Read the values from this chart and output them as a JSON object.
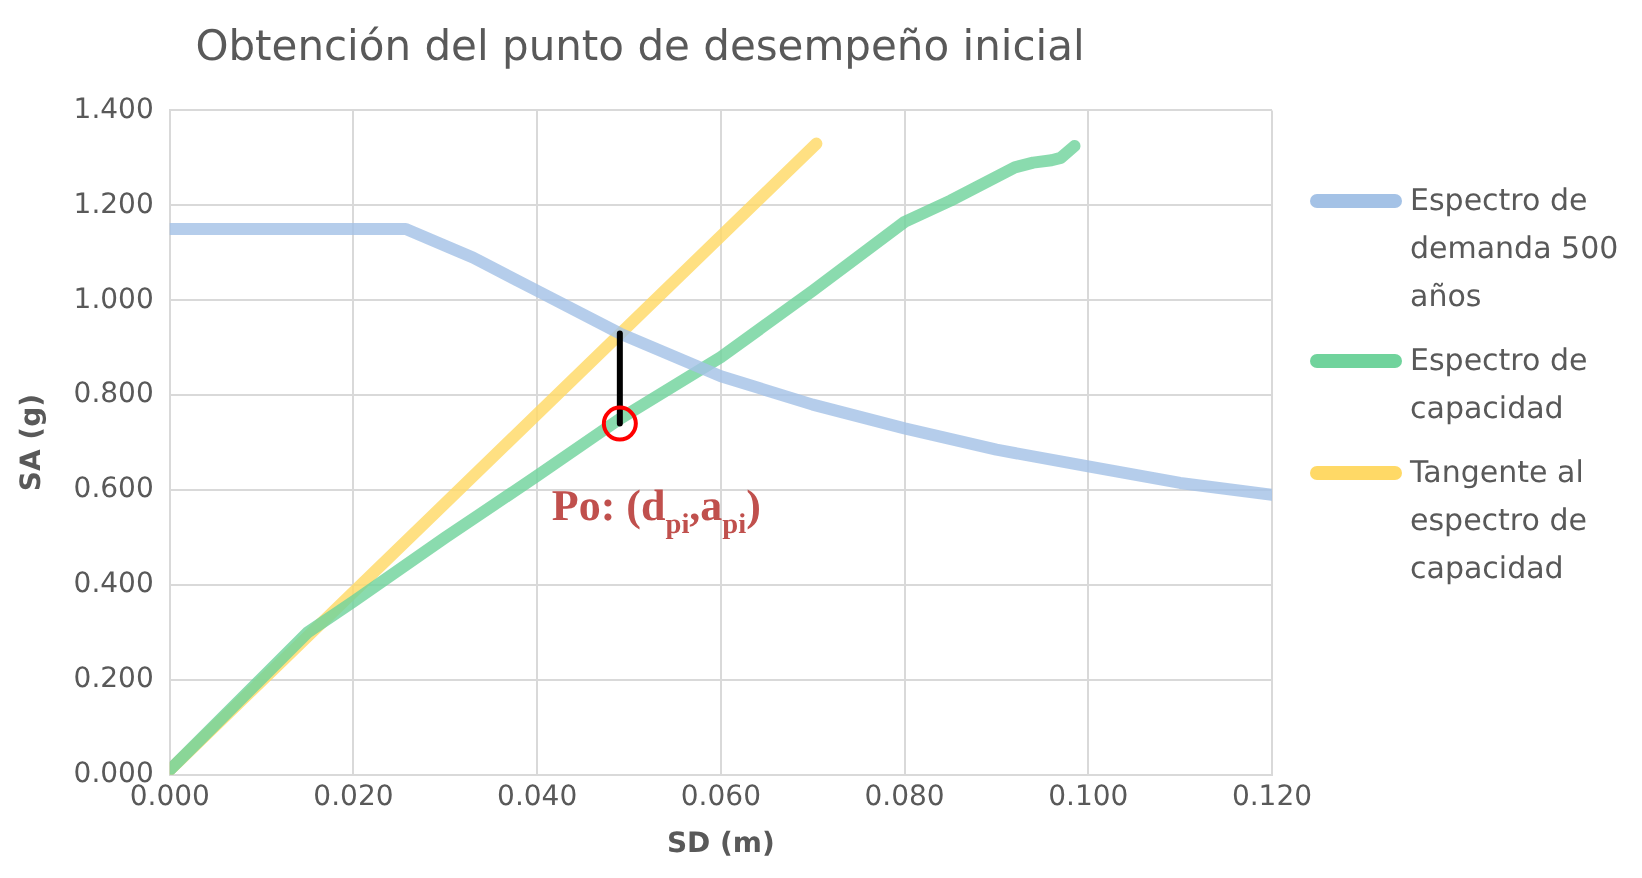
{
  "chart_data": {
    "type": "line",
    "title": "Obtención del punto de desempeño inicial",
    "xlabel": "SD (m)",
    "ylabel": "SA (g)",
    "xlim": [
      0,
      0.12
    ],
    "xticks": [
      {
        "value": 0,
        "label": "0.000"
      },
      {
        "value": 0.02,
        "label": "0.020"
      },
      {
        "value": 0.04,
        "label": "0.040"
      },
      {
        "value": 0.06,
        "label": "0.060"
      },
      {
        "value": 0.08,
        "label": "0.080"
      },
      {
        "value": 0.1,
        "label": "0.100"
      },
      {
        "value": 0.12,
        "label": "0.120"
      }
    ],
    "ylim": [
      0,
      1.4
    ],
    "yticks": [
      {
        "value": 0,
        "label": "0.000"
      },
      {
        "value": 0.2,
        "label": "0.200"
      },
      {
        "value": 0.4,
        "label": "0.400"
      },
      {
        "value": 0.6,
        "label": "0.600"
      },
      {
        "value": 0.8,
        "label": "0.800"
      },
      {
        "value": 1,
        "label": "1.000"
      },
      {
        "value": 1.2,
        "label": "1.200"
      },
      {
        "value": 1.4,
        "label": "1.400"
      }
    ],
    "grid": true,
    "legend": "right",
    "marker": "none",
    "line_style": "solid",
    "series": [
      {
        "name": "Espectro de demanda 500 años",
        "color": "#a4c2e6",
        "x": [
          0,
          0.0257,
          0.033,
          0.04,
          0.049,
          0.06,
          0.07,
          0.08,
          0.09,
          0.1,
          0.11,
          0.12
        ],
        "values": [
          1.15,
          1.15,
          1.09,
          1.02,
          0.93,
          0.84,
          0.78,
          0.73,
          0.685,
          0.65,
          0.615,
          0.59
        ]
      },
      {
        "name": "Espectro de capacidad",
        "color": "#70d39c",
        "x": [
          0,
          0.015,
          0.02,
          0.03,
          0.04,
          0.049,
          0.06,
          0.07,
          0.08,
          0.085,
          0.09,
          0.092,
          0.094,
          0.096,
          0.097,
          0.0985
        ],
        "values": [
          0.01,
          0.3,
          0.365,
          0.5,
          0.63,
          0.75,
          0.88,
          1.02,
          1.165,
          1.21,
          1.26,
          1.28,
          1.29,
          1.295,
          1.3,
          1.325
        ]
      },
      {
        "name": "Tangente al espectro de capacidad",
        "color": "#ffd966",
        "x": [
          0,
          0.0704
        ],
        "values": [
          0.01,
          1.33
        ]
      },
      {
        "color": "#000000",
        "x": [
          0.049,
          0.049
        ],
        "values": [
          0.74,
          0.93
        ]
      },
      {
        "type": "scatter",
        "marker": "circle",
        "color": "#ff0000",
        "x": [
          0.049
        ],
        "values": [
          0.74
        ]
      }
    ],
    "annotations": [
      {
        "text": "Po: (d$_{pi}$,a$_{pi}$)",
        "x": 0.049,
        "y": 0.74
      }
    ]
  }
}
